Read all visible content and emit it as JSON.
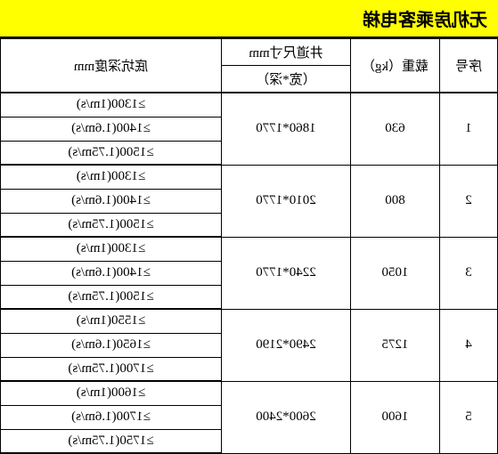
{
  "title": "无机房乘客电梯",
  "headers": {
    "num": "序号",
    "load": "载重（kg）",
    "dim_top": "井道尺寸mm",
    "dim_sub": "（宽*深）",
    "pit": "底坑深度mm"
  },
  "rows": [
    {
      "num": "1",
      "load": "630",
      "dim": "1860*1770",
      "pits": [
        "≥1300(1m/s)",
        "≥1400(1.6m/s)",
        "≥1500(1.75m/s)"
      ]
    },
    {
      "num": "2",
      "load": "800",
      "dim": "2010*1770",
      "pits": [
        "≥1300(1m/s)",
        "≥1400(1.6m/s)",
        "≥1500(1.75m/s)"
      ]
    },
    {
      "num": "3",
      "load": "1050",
      "dim": "2240*1770",
      "pits": [
        "≥1300(1m/s)",
        "≥1400(1.6m/s)",
        "≥1500(1.75m/s)"
      ]
    },
    {
      "num": "4",
      "load": "1275",
      "dim": "2490*2190",
      "pits": [
        "≥1550(1m/s)",
        "≥1650(1.6m/s)",
        "≥1700(1.75m/s)"
      ]
    },
    {
      "num": "5",
      "load": "1600",
      "dim": "2600*2400",
      "pits": [
        "≥1600(1m/s)",
        "≥1700(1.6m/s)",
        "≥1750(1.75m/s)"
      ]
    }
  ]
}
